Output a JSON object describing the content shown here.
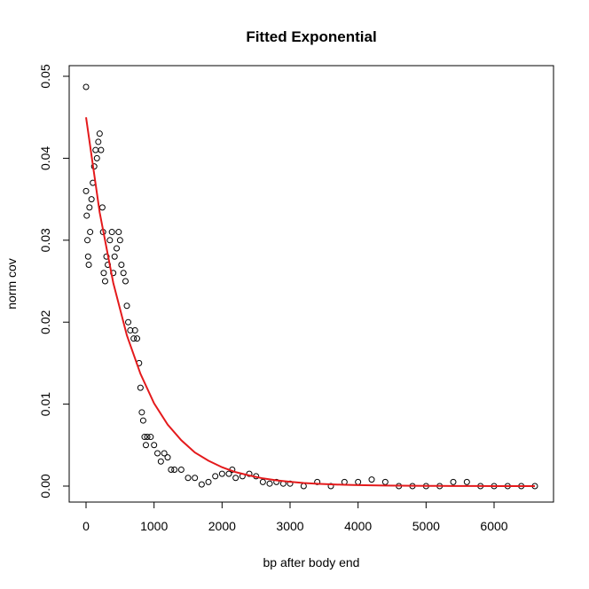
{
  "chart_data": {
    "type": "scatter",
    "title": "Fitted Exponential",
    "xlabel": "bp after body end",
    "ylabel": "norm cov",
    "x": [
      0,
      0,
      10,
      20,
      30,
      40,
      50,
      60,
      80,
      100,
      120,
      140,
      160,
      180,
      200,
      220,
      240,
      250,
      260,
      280,
      300,
      320,
      350,
      380,
      400,
      420,
      450,
      480,
      500,
      520,
      550,
      580,
      600,
      620,
      650,
      700,
      720,
      750,
      780,
      800,
      820,
      840,
      860,
      880,
      900,
      950,
      1000,
      1050,
      1100,
      1150,
      1200,
      1250,
      1300,
      1400,
      1500,
      1600,
      1700,
      1800,
      1900,
      2000,
      2100,
      2150,
      2200,
      2300,
      2400,
      2500,
      2600,
      2700,
      2800,
      2900,
      3000,
      3200,
      3400,
      3600,
      3800,
      4000,
      4200,
      4400,
      4600,
      4800,
      5000,
      5200,
      5400,
      5600,
      5800,
      6000,
      6200,
      6400,
      6600
    ],
    "values": [
      0.0487,
      0.036,
      0.033,
      0.03,
      0.028,
      0.027,
      0.034,
      0.031,
      0.035,
      0.037,
      0.039,
      0.041,
      0.04,
      0.042,
      0.043,
      0.041,
      0.034,
      0.031,
      0.026,
      0.025,
      0.028,
      0.027,
      0.03,
      0.031,
      0.026,
      0.028,
      0.029,
      0.031,
      0.03,
      0.027,
      0.026,
      0.025,
      0.022,
      0.02,
      0.019,
      0.018,
      0.019,
      0.018,
      0.015,
      0.012,
      0.009,
      0.008,
      0.006,
      0.005,
      0.006,
      0.006,
      0.005,
      0.004,
      0.003,
      0.004,
      0.0035,
      0.002,
      0.002,
      0.002,
      0.001,
      0.001,
      0.0002,
      0.0005,
      0.0012,
      0.0015,
      0.0015,
      0.002,
      0.001,
      0.0012,
      0.0015,
      0.0012,
      0.0005,
      0.0003,
      0.0005,
      0.0003,
      0.0003,
      0,
      0.0005,
      0,
      0.0005,
      0.0005,
      0.0008,
      0.0005,
      0,
      0,
      0,
      0,
      0.0005,
      0.0005,
      0,
      0,
      0,
      0,
      0
    ],
    "color": "#000000",
    "fit": {
      "color": "#e41a1c",
      "x": [
        0,
        200,
        400,
        600,
        800,
        1000,
        1200,
        1400,
        1600,
        1800,
        2000,
        2200,
        2400,
        2600,
        2800,
        3000,
        3200,
        3400,
        3600,
        3800,
        4000,
        4200,
        4400,
        4600,
        4800,
        5000,
        5200,
        5400,
        5600,
        5800,
        6000,
        6200,
        6400,
        6600
      ],
      "values": [
        0.045,
        0.0334,
        0.0248,
        0.0184,
        0.0137,
        0.0101,
        0.0075,
        0.0056,
        0.0041,
        0.0031,
        0.0023,
        0.0017,
        0.0013,
        0.00094,
        0.0007,
        0.00052,
        0.00038,
        0.00028,
        0.00021,
        0.00016,
        0.00012,
        9e-05,
        6e-05,
        5e-05,
        4e-05,
        3e-05,
        2e-05,
        1e-05,
        1e-05,
        1e-05,
        0,
        0,
        0,
        0
      ]
    },
    "xlim": [
      -248,
      6874
    ],
    "ylim": [
      -0.00195,
      0.0513
    ],
    "xticks": [
      0,
      1000,
      2000,
      3000,
      4000,
      5000,
      6000
    ],
    "yticks": [
      {
        "value": 0,
        "label": "0.00"
      },
      {
        "value": 0.01,
        "label": "0.01"
      },
      {
        "value": 0.02,
        "label": "0.02"
      },
      {
        "value": 0.03,
        "label": "0.03"
      },
      {
        "value": 0.04,
        "label": "0.04"
      },
      {
        "value": 0.05,
        "label": "0.05"
      }
    ]
  }
}
